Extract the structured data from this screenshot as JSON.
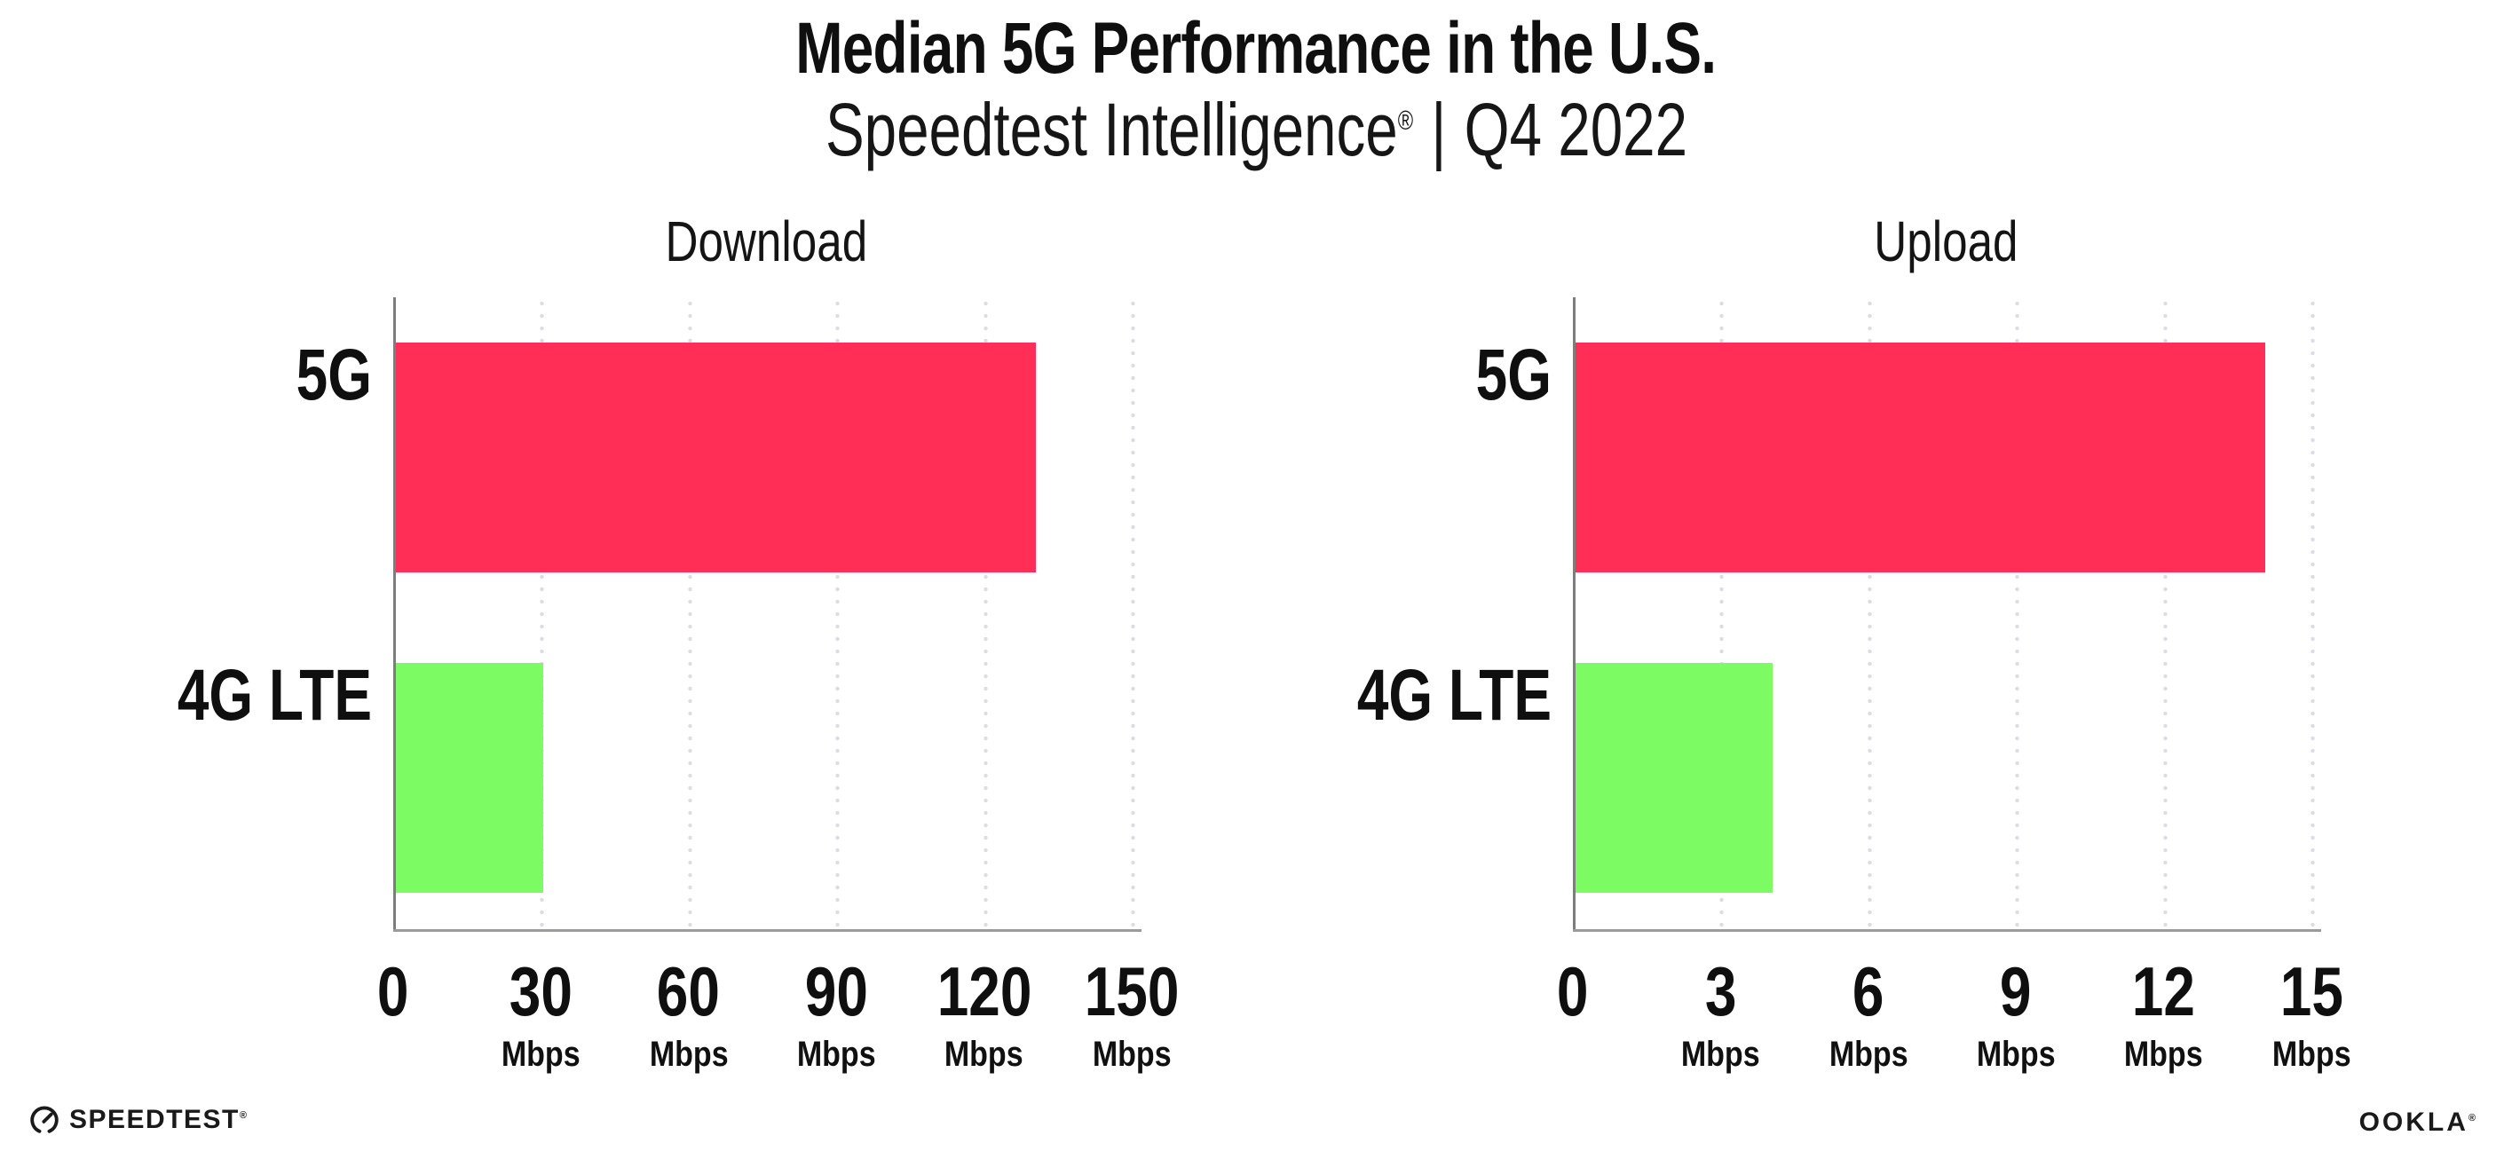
{
  "header": {
    "title": "Median 5G Performance in the U.S.",
    "subtitle_product": "Speedtest Intelligence",
    "subtitle_reg": "®",
    "subtitle_divider": "|",
    "subtitle_period": "Q4 2022"
  },
  "colors": {
    "bar_5g": "#FF2E56",
    "bar_4g_lte": "#7DFB63",
    "gridline": "#DCDCE6",
    "y_axis": "#7D7D7D",
    "x_axis": "#9B9B9B",
    "text": "#0F0F0F"
  },
  "chart_data": [
    {
      "type": "bar",
      "orientation": "horizontal",
      "title": "Download",
      "categories": [
        "5G",
        "4G LTE"
      ],
      "values": [
        130,
        30
      ],
      "unit": "Mbps",
      "xlim": [
        0,
        150
      ],
      "ticks": [
        0,
        30,
        60,
        90,
        120,
        150
      ],
      "tick_unit": "Mbps",
      "grid": "dotted-vertical",
      "bar_colors": [
        "#FF2E56",
        "#7DFB63"
      ]
    },
    {
      "type": "bar",
      "orientation": "horizontal",
      "title": "Upload",
      "categories": [
        "5G",
        "4G LTE"
      ],
      "values": [
        14,
        4
      ],
      "unit": "Mbps",
      "xlim": [
        0,
        15
      ],
      "ticks": [
        0,
        3,
        6,
        9,
        12,
        15
      ],
      "tick_unit": "Mbps",
      "grid": "dotted-vertical",
      "bar_colors": [
        "#FF2E56",
        "#7DFB63"
      ]
    }
  ],
  "footer": {
    "speedtest_text": "SPEEDTEST",
    "speedtest_mark": "®",
    "ookla_text": "OOKLA",
    "ookla_mark": "®"
  }
}
